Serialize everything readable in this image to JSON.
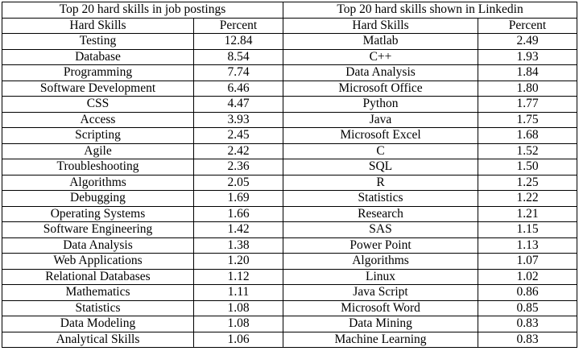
{
  "job_postings": {
    "title": "Top 20 hard skills in job postings",
    "col_skill": "Hard Skills",
    "col_percent": "Percent",
    "rows": [
      {
        "skill": "Testing",
        "percent": "12.84"
      },
      {
        "skill": "Database",
        "percent": "8.54"
      },
      {
        "skill": "Programming",
        "percent": "7.74"
      },
      {
        "skill": "Software Development",
        "percent": "6.46"
      },
      {
        "skill": "CSS",
        "percent": "4.47"
      },
      {
        "skill": "Access",
        "percent": "3.93"
      },
      {
        "skill": "Scripting",
        "percent": "2.45"
      },
      {
        "skill": "Agile",
        "percent": "2.42"
      },
      {
        "skill": "Troubleshooting",
        "percent": "2.36"
      },
      {
        "skill": "Algorithms",
        "percent": "2.05"
      },
      {
        "skill": "Debugging",
        "percent": "1.69"
      },
      {
        "skill": "Operating Systems",
        "percent": "1.66"
      },
      {
        "skill": "Software Engineering",
        "percent": "1.42"
      },
      {
        "skill": "Data Analysis",
        "percent": "1.38"
      },
      {
        "skill": "Web Applications",
        "percent": "1.20"
      },
      {
        "skill": "Relational Databases",
        "percent": "1.12"
      },
      {
        "skill": "Mathematics",
        "percent": "1.11"
      },
      {
        "skill": "Statistics",
        "percent": "1.08"
      },
      {
        "skill": "Data Modeling",
        "percent": "1.08"
      },
      {
        "skill": "Analytical Skills",
        "percent": "1.06"
      }
    ]
  },
  "linkedin": {
    "title": "Top 20 hard skills shown in Linkedin",
    "col_skill": "Hard Skills",
    "col_percent": "Percent",
    "rows": [
      {
        "skill": "Matlab",
        "percent": "2.49"
      },
      {
        "skill": "C++",
        "percent": "1.93"
      },
      {
        "skill": "Data Analysis",
        "percent": "1.84"
      },
      {
        "skill": "Microsoft Office",
        "percent": "1.80"
      },
      {
        "skill": "Python",
        "percent": "1.77"
      },
      {
        "skill": "Java",
        "percent": "1.75"
      },
      {
        "skill": "Microsoft Excel",
        "percent": "1.68"
      },
      {
        "skill": "C",
        "percent": "1.52"
      },
      {
        "skill": "SQL",
        "percent": "1.50"
      },
      {
        "skill": "R",
        "percent": "1.25"
      },
      {
        "skill": "Statistics",
        "percent": "1.22"
      },
      {
        "skill": "Research",
        "percent": "1.21"
      },
      {
        "skill": "SAS",
        "percent": "1.15"
      },
      {
        "skill": "Power Point",
        "percent": "1.13"
      },
      {
        "skill": "Algorithms",
        "percent": "1.07"
      },
      {
        "skill": "Linux",
        "percent": "1.02"
      },
      {
        "skill": "Java Script",
        "percent": "0.86"
      },
      {
        "skill": "Microsoft Word",
        "percent": "0.85"
      },
      {
        "skill": "Data Mining",
        "percent": "0.83"
      },
      {
        "skill": "Machine Learning",
        "percent": "0.83"
      }
    ]
  }
}
